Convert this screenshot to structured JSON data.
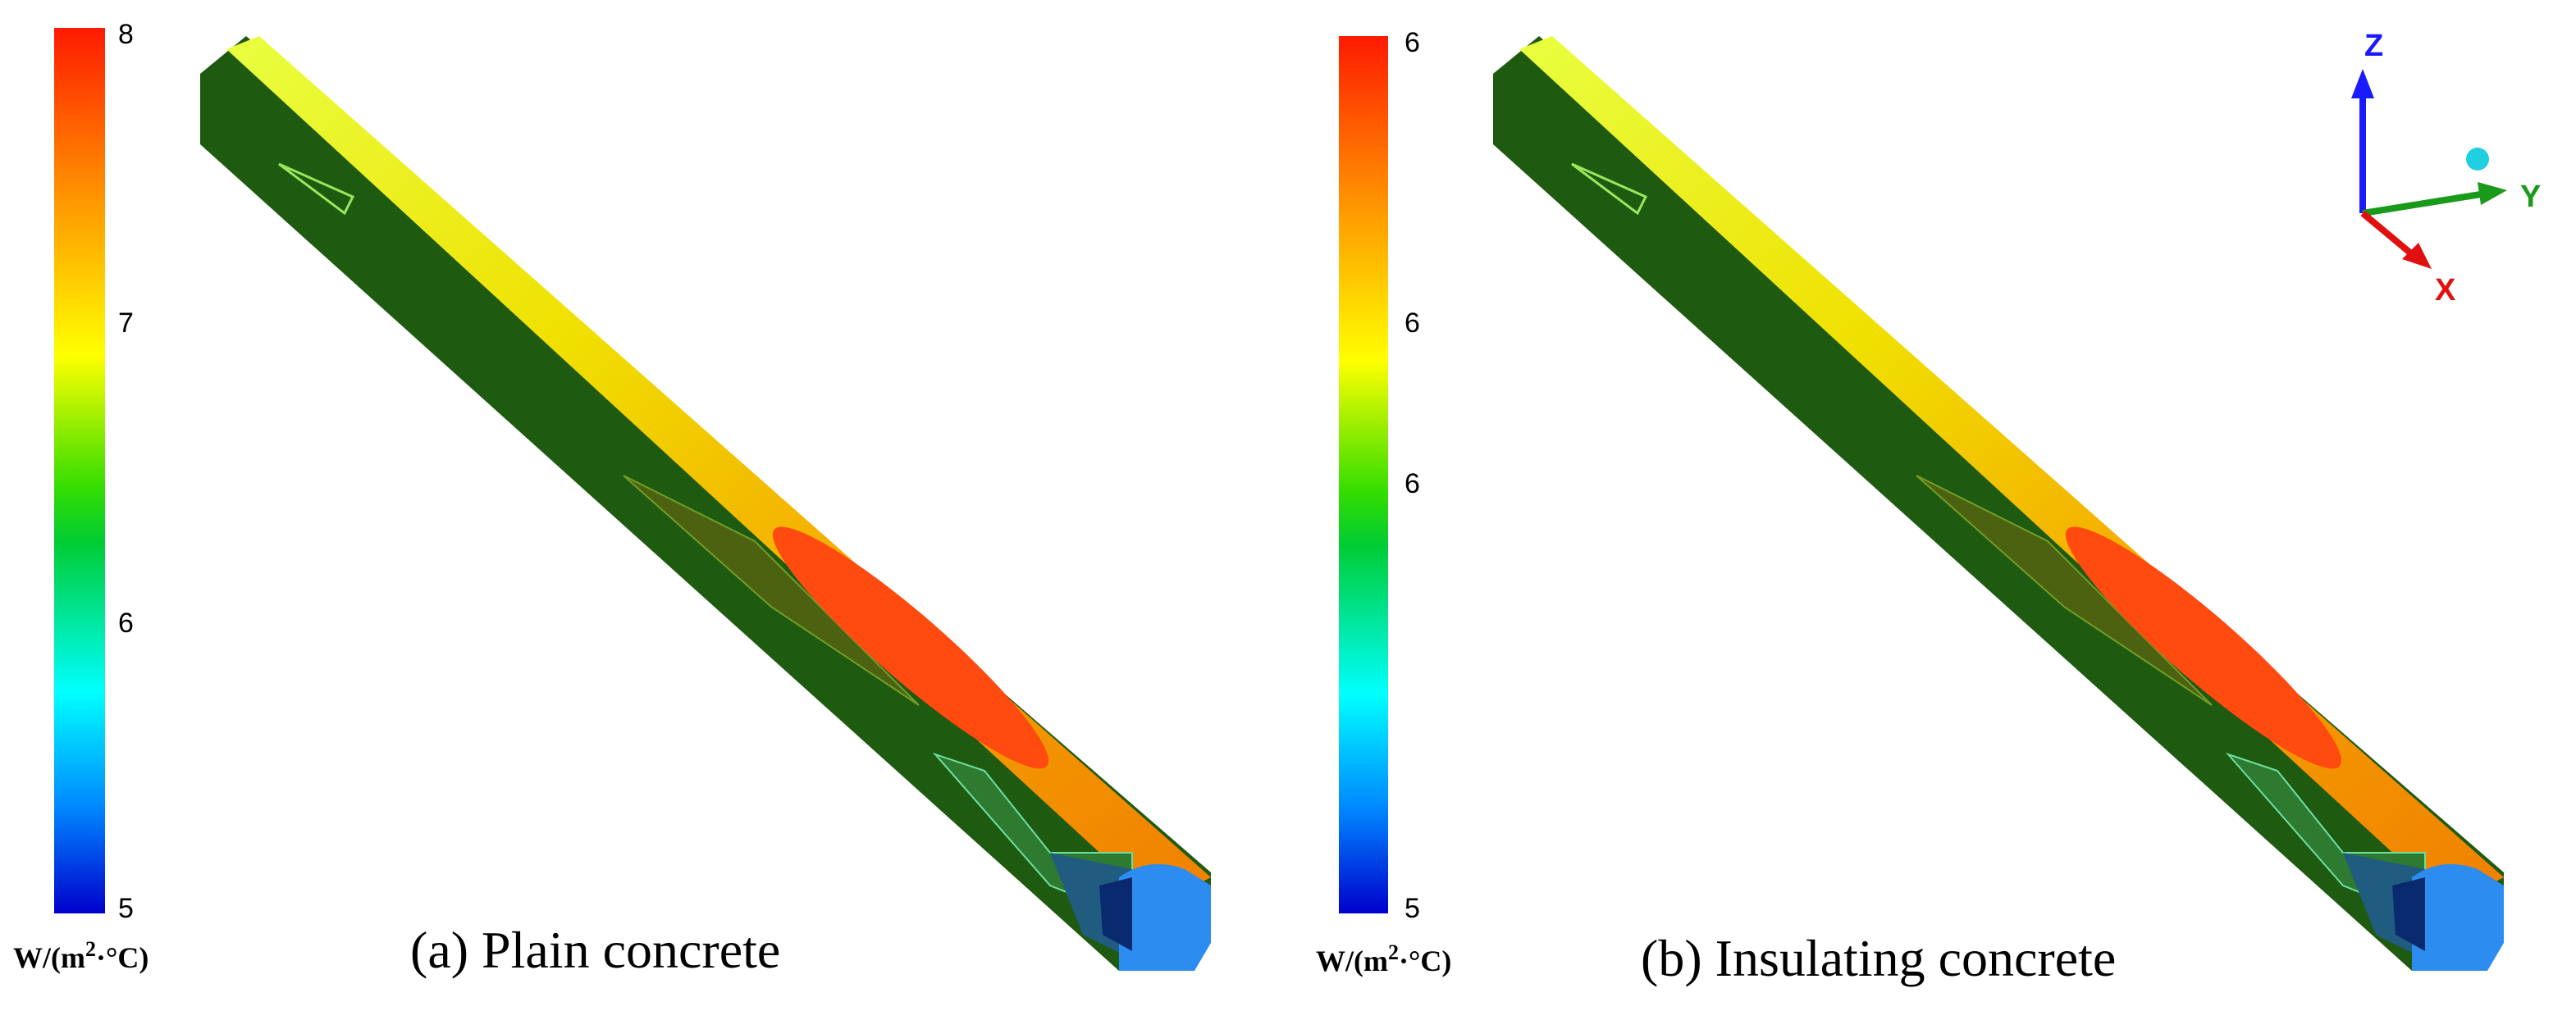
{
  "panels": [
    {
      "caption": "(a) Plain concrete",
      "colorbar": {
        "ticks": [
          "8",
          "7",
          "6",
          "5"
        ],
        "unit": {
          "prefix": "W/(m",
          "sup": "2",
          "suffix": "·°C)"
        }
      }
    },
    {
      "caption": "(b) Insulating concrete",
      "colorbar": {
        "ticks": [
          "6",
          "6",
          "6",
          "5"
        ],
        "unit": {
          "prefix": "W/(m",
          "sup": "2",
          "suffix": "·°C)"
        }
      }
    }
  ],
  "axes_triad": {
    "z": "Z",
    "y": "Y",
    "x": "X"
  }
}
